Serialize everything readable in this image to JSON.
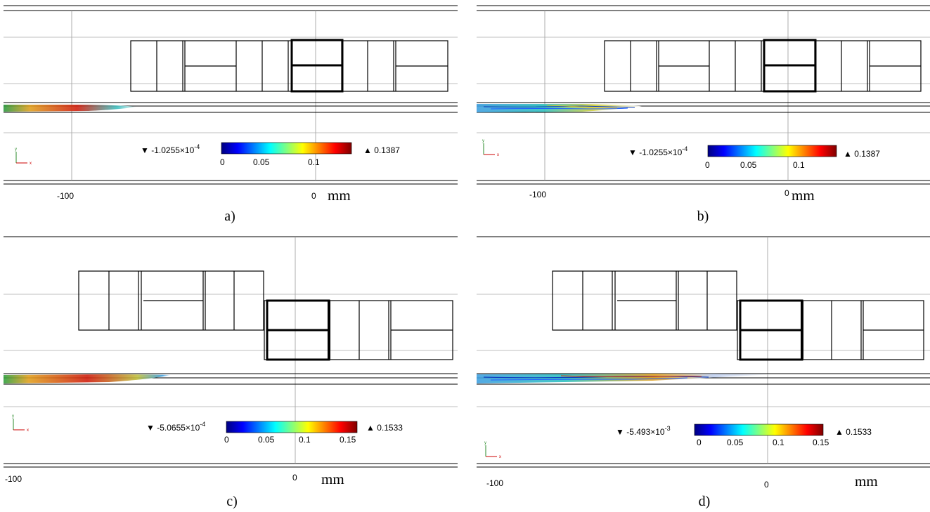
{
  "colorbar_gradient": [
    "#00007f",
    "#0000ff",
    "#0080ff",
    "#00ffff",
    "#80ff80",
    "#ffff00",
    "#ff8000",
    "#ff0000",
    "#7f0000"
  ],
  "panels": [
    {
      "id": "a",
      "caption": "a)",
      "x_tick_left": "-100",
      "x_tick_zero": "0",
      "unit": "mm",
      "min_label": "-1.0255×10",
      "min_exp": "-4",
      "max_label": "0.1387",
      "cb_ticks": [
        "0",
        "0.05",
        "0.1"
      ],
      "flow": "smooth"
    },
    {
      "id": "b",
      "caption": "b)",
      "x_tick_left": "-100",
      "x_tick_zero": "0",
      "unit": "mm",
      "min_label": "-1.0255×10",
      "min_exp": "-4",
      "max_label": "0.1387",
      "cb_ticks": [
        "0",
        "0.05",
        "0.1"
      ],
      "flow": "turbulent"
    },
    {
      "id": "c",
      "caption": "c)",
      "x_tick_left": "-100",
      "x_tick_zero": "0",
      "unit": "mm",
      "min_label": "-5.0655×10",
      "min_exp": "-4",
      "max_label": "0.1533",
      "cb_ticks": [
        "0",
        "0.05",
        "0.1",
        "0.15"
      ],
      "flow": "smooth"
    },
    {
      "id": "d",
      "caption": "d)",
      "x_tick_left": "-100",
      "x_tick_zero": "0",
      "unit": "mm",
      "min_label": "-5.493×10",
      "min_exp": "-3",
      "max_label": "0.1533",
      "cb_ticks": [
        "0",
        "0.05",
        "0.1",
        "0.15"
      ],
      "flow": "turbulent"
    }
  ],
  "axis_triad": {
    "x": "x",
    "y": "y"
  }
}
